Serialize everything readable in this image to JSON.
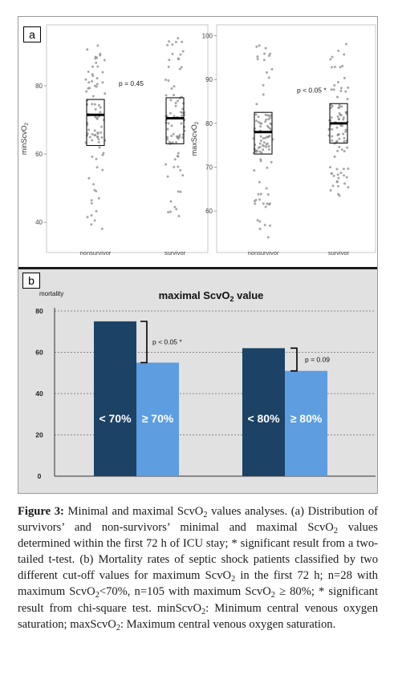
{
  "panel_a": {
    "tag": "a",
    "plots": [
      {
        "ylabel_main": "minScvO",
        "ylabel_sub": "2",
        "yticks": [
          "40",
          "60",
          "80"
        ],
        "categories": [
          "nonsurvivor",
          "survivor"
        ],
        "annotation": "p = 0.45"
      },
      {
        "ylabel_main": "maxScvO",
        "ylabel_sub": "2",
        "yticks": [
          "60",
          "70",
          "80",
          "90",
          "100"
        ],
        "categories": [
          "nonsurvivor",
          "survivor"
        ],
        "annotation": "p < 0.05 *"
      }
    ]
  },
  "panel_b": {
    "tag": "b",
    "title_main": "maximal ScvO",
    "title_sub": "2",
    "title_end": " value",
    "ylabel": "mortality",
    "yticks": [
      "0",
      "20",
      "40",
      "60",
      "80"
    ],
    "bar_labels": [
      "< 70%",
      "≥ 70%",
      "< 80%",
      "≥ 80%"
    ],
    "p_labels": [
      "p < 0.05 *",
      "p = 0.09"
    ]
  },
  "colors": {
    "dark_bar": "#1c4266",
    "light_bar": "#5d9de0",
    "panel_b_bg": "#e1e1e1",
    "jitter_points": "#8a8a8a"
  },
  "chart_data": [
    {
      "type": "box",
      "title": "",
      "ylabel": "minScvO2",
      "categories": [
        "nonsurvivor",
        "survivor"
      ],
      "ylim": [
        33,
        96
      ],
      "series": [
        {
          "category": "nonsurvivor",
          "q1": 62.5,
          "median": 71.5,
          "q3": 76,
          "min": 35,
          "max": 92
        },
        {
          "category": "survivor",
          "q1": 63,
          "median": 70.5,
          "q3": 76.5,
          "min": 41,
          "max": 94
        }
      ],
      "annotations": [
        "p = 0.45"
      ]
    },
    {
      "type": "box",
      "title": "",
      "ylabel": "maxScvO2",
      "categories": [
        "nonsurvivor",
        "survivor"
      ],
      "ylim": [
        52,
        101
      ],
      "series": [
        {
          "category": "nonsurvivor",
          "q1": 73,
          "median": 78,
          "q3": 82.5,
          "min": 54,
          "max": 99
        },
        {
          "category": "survivor",
          "q1": 75.5,
          "median": 80,
          "q3": 84.5,
          "min": 63,
          "max": 99
        }
      ],
      "annotations": [
        "p < 0.05 *"
      ]
    },
    {
      "type": "bar",
      "title": "maximal ScvO2 value",
      "ylabel": "mortality",
      "categories": [
        "< 70%",
        "≥ 70%",
        "< 80%",
        "≥ 80%"
      ],
      "values": [
        75,
        55,
        62,
        51
      ],
      "ylim": [
        0,
        85
      ],
      "grid": true,
      "annotations": [
        "p < 0.05 *",
        "p = 0.09"
      ]
    }
  ],
  "caption": {
    "figure_label": "Figure 3:",
    "line1": " Minimal and maximal ScvO",
    "line1_sub": "2",
    "line1_end": " values analyses. (a) Distribution of survivors’ and non-survivors’ minimal and maximal ScvO",
    "seg2_sub": "2",
    "seg2_end": " values determined within the first 72 h of ICU stay; * significant result from a two-tailed t-test. (b) Mortality rates of septic shock patients classified by two different cut-off values for maximum ScvO",
    "seg3_sub": "2",
    "seg3_end": " in the first 72 h; n=28 with maximum ScvO",
    "seg4_sub": "2",
    "seg4_end": "<70%, n=105 with maximum ScvO",
    "seg5_sub": "2",
    "seg5_end": " ≥ 80%; * significant result from chi-square test. minScvO",
    "seg6_sub": "2",
    "seg6_end": ": Minimum central venous oxygen saturation; maxScvO",
    "seg7_sub": "2",
    "seg7_end": ": Maximum central venous oxygen saturation."
  }
}
